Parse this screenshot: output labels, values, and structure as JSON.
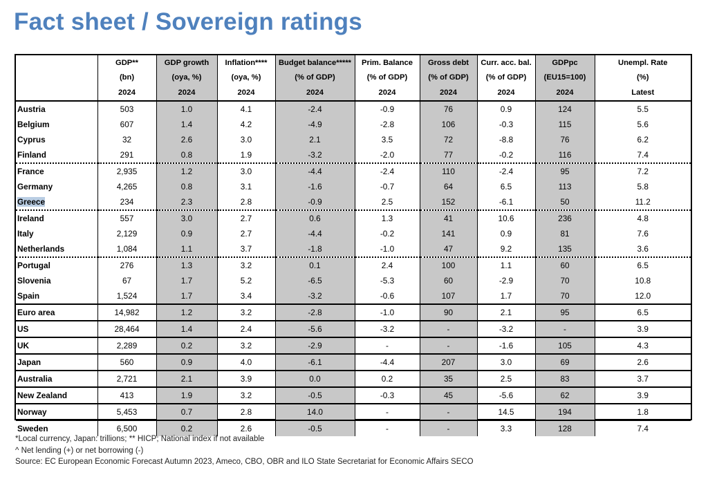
{
  "title": "Fact sheet / Sovereign ratings",
  "header": {
    "rows": [
      [
        "",
        "GDP**",
        "GDP growth",
        "Inflation****",
        "Budget balance*****",
        "Prim. Balance",
        "Gross debt",
        "Curr. acc. bal.",
        "GDPpc",
        "Unempl. Rate"
      ],
      [
        "",
        "(bn)",
        "(oya, %)",
        "(oya, %)",
        "(% of GDP)",
        "(% of GDP)",
        "(% of GDP)",
        "(% of GDP)",
        "(EU15=100)",
        "(%)"
      ],
      [
        "",
        "2024",
        "2024",
        "2024",
        "2024",
        "2024",
        "2024",
        "2024",
        "2024",
        "Latest"
      ]
    ]
  },
  "rows": [
    {
      "country": "Austria",
      "gdp": "503",
      "growth": "1.0",
      "inflation": "4.1",
      "budget": "-2.4",
      "primary": "-0.9",
      "debt": "76",
      "current": "0.9",
      "gdppc": "124",
      "unemp": "5.5"
    },
    {
      "country": "Belgium",
      "gdp": "607",
      "growth": "1.4",
      "inflation": "4.2",
      "budget": "-4.9",
      "primary": "-2.8",
      "debt": "106",
      "current": "-0.3",
      "gdppc": "115",
      "unemp": "5.6"
    },
    {
      "country": "Cyprus",
      "gdp": "32",
      "growth": "2.6",
      "inflation": "3.0",
      "budget": "2.1",
      "primary": "3.5",
      "debt": "72",
      "current": "-8.8",
      "gdppc": "76",
      "unemp": "6.2"
    },
    {
      "country": "Finland",
      "gdp": "291",
      "growth": "0.8",
      "inflation": "1.9",
      "budget": "-3.2",
      "primary": "-2.0",
      "debt": "77",
      "current": "-0.2",
      "gdppc": "116",
      "unemp": "7.4"
    },
    {
      "country": "France",
      "gdp": "2,935",
      "growth": "1.2",
      "inflation": "3.0",
      "budget": "-4.4",
      "primary": "-2.4",
      "debt": "110",
      "current": "-2.4",
      "gdppc": "95",
      "unemp": "7.2"
    },
    {
      "country": "Germany",
      "gdp": "4,265",
      "growth": "0.8",
      "inflation": "3.1",
      "budget": "-1.6",
      "primary": "-0.7",
      "debt": "64",
      "current": "6.5",
      "gdppc": "113",
      "unemp": "5.8"
    },
    {
      "country": "Greece",
      "gdp": "234",
      "growth": "2.3",
      "inflation": "2.8",
      "budget": "-0.9",
      "primary": "2.5",
      "debt": "152",
      "current": "-6.1",
      "gdppc": "50",
      "unemp": "11.2"
    },
    {
      "country": "Ireland",
      "gdp": "557",
      "growth": "3.0",
      "inflation": "2.7",
      "budget": "0.6",
      "primary": "1.3",
      "debt": "41",
      "current": "10.6",
      "gdppc": "236",
      "unemp": "4.8"
    },
    {
      "country": "Italy",
      "gdp": "2,129",
      "growth": "0.9",
      "inflation": "2.7",
      "budget": "-4.4",
      "primary": "-0.2",
      "debt": "141",
      "current": "0.9",
      "gdppc": "81",
      "unemp": "7.6"
    },
    {
      "country": "Netherlands",
      "gdp": "1,084",
      "growth": "1.1",
      "inflation": "3.7",
      "budget": "-1.8",
      "primary": "-1.0",
      "debt": "47",
      "current": "9.2",
      "gdppc": "135",
      "unemp": "3.6"
    },
    {
      "country": "Portugal",
      "gdp": "276",
      "growth": "1.3",
      "inflation": "3.2",
      "budget": "0.1",
      "primary": "2.4",
      "debt": "100",
      "current": "1.1",
      "gdppc": "60",
      "unemp": "6.5"
    },
    {
      "country": "Slovenia",
      "gdp": "67",
      "growth": "1.7",
      "inflation": "5.2",
      "budget": "-6.5",
      "primary": "-5.3",
      "debt": "60",
      "current": "-2.9",
      "gdppc": "70",
      "unemp": "10.8"
    },
    {
      "country": "Spain",
      "gdp": "1,524",
      "growth": "1.7",
      "inflation": "3.4",
      "budget": "-3.2",
      "primary": "-0.6",
      "debt": "107",
      "current": "1.7",
      "gdppc": "70",
      "unemp": "12.0"
    },
    {
      "country": "Euro area",
      "gdp": "14,982",
      "growth": "1.2",
      "inflation": "3.2",
      "budget": "-2.8",
      "primary": "-1.0",
      "debt": "90",
      "current": "2.1",
      "gdppc": "95",
      "unemp": "6.5"
    },
    {
      "country": "US",
      "gdp": "28,464",
      "growth": "1.4",
      "inflation": "2.4",
      "budget": "-5.6",
      "primary": "-3.2",
      "debt": "-",
      "current": "-3.2",
      "gdppc": "-",
      "unemp": "3.9"
    },
    {
      "country": "UK",
      "gdp": "2,289",
      "growth": "0.2",
      "inflation": "3.2",
      "budget": "-2.9",
      "primary": "-",
      "debt": "-",
      "current": "-1.6",
      "gdppc": "105",
      "unemp": "4.3"
    },
    {
      "country": "Japan",
      "gdp": "560",
      "growth": "0.9",
      "inflation": "4.0",
      "budget": "-6.1",
      "primary": "-4.4",
      "debt": "207",
      "current": "3.0",
      "gdppc": "69",
      "unemp": "2.6"
    },
    {
      "country": "Australia",
      "gdp": "2,721",
      "growth": "2.1",
      "inflation": "3.9",
      "budget": "0.0",
      "primary": "0.2",
      "debt": "35",
      "current": "2.5",
      "gdppc": "83",
      "unemp": "3.7"
    },
    {
      "country": "New Zealand",
      "gdp": "413",
      "growth": "1.9",
      "inflation": "3.2",
      "budget": "-0.5",
      "primary": "-0.3",
      "debt": "45",
      "current": "-5.6",
      "gdppc": "62",
      "unemp": "3.9"
    },
    {
      "country": "Norway",
      "gdp": "5,453",
      "growth": "0.7",
      "inflation": "2.8",
      "budget": "14.0",
      "primary": "-",
      "debt": "-",
      "current": "14.5",
      "gdppc": "194",
      "unemp": "1.8"
    },
    {
      "country": "Sweden",
      "gdp": "6,500",
      "growth": "0.2",
      "inflation": "2.6",
      "budget": "-0.5",
      "primary": "-",
      "debt": "-",
      "current": "3.3",
      "gdppc": "128",
      "unemp": "7.4"
    }
  ],
  "highlighted_country": "Greece",
  "colors": {
    "title": "#4f81bd",
    "shade": "#c8c8c8",
    "highlight": "#b9cde3"
  },
  "footnotes": [
    "*Local currency, Japan: trillions; ** HICP; National index if not available",
    "^ Net lending (+) or net borrowing (-)",
    "Source: EC European Economic Forecast Autumn 2023, Ameco, CBO, OBR and ILO State Secretariat for Economic Affairs SECO"
  ]
}
